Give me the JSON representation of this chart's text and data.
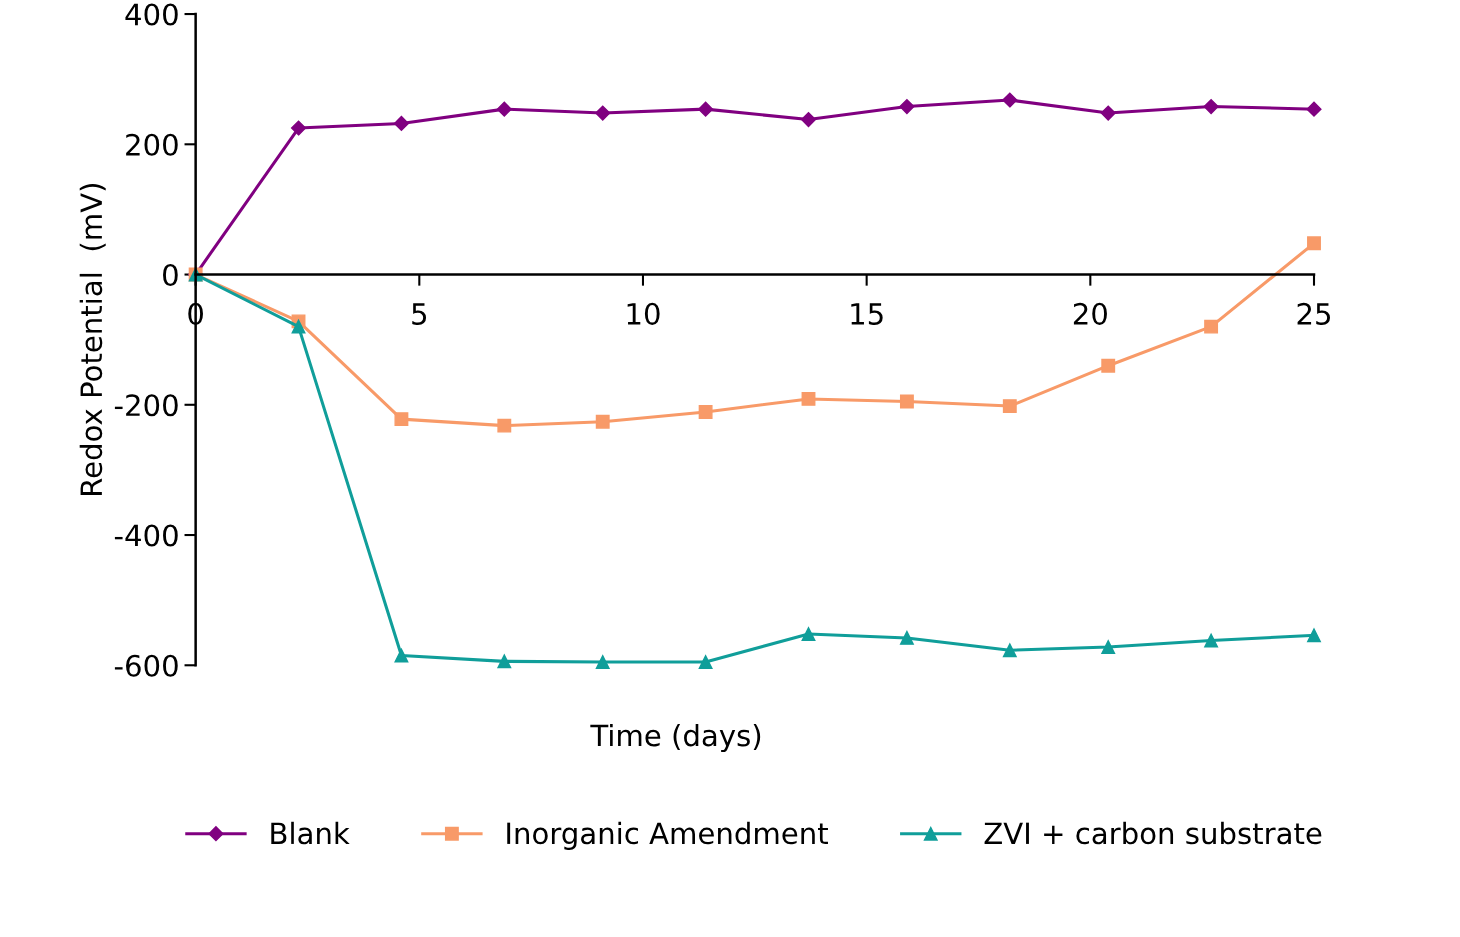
{
  "chart_data": {
    "type": "line",
    "xlabel": "Time (days)",
    "ylabel": "Redox Potential  (mV)",
    "x": [
      0,
      2.3,
      4.6,
      6.9,
      9.1,
      11.4,
      13.7,
      15.9,
      18.2,
      20.4,
      22.7,
      25
    ],
    "series": [
      {
        "name": "Blank",
        "color": "#800080",
        "marker": "diamond",
        "values": [
          0,
          225,
          232,
          254,
          248,
          254,
          238,
          258,
          268,
          248,
          258,
          254
        ]
      },
      {
        "name": "Inorganic Amendment",
        "color": "#f89a68",
        "marker": "square",
        "values": [
          0,
          -72,
          -222,
          -232,
          -226,
          -211,
          -191,
          -195,
          -202,
          -140,
          -80,
          48
        ]
      },
      {
        "name": "ZVI + carbon substrate",
        "color": "#109e9a",
        "marker": "triangle",
        "values": [
          0,
          -80,
          -585,
          -594,
          -595,
          -595,
          -552,
          -558,
          -577,
          -572,
          -562,
          -554
        ]
      }
    ],
    "xlim": [
      0,
      25
    ],
    "xticks": [
      0,
      5,
      10,
      15,
      20,
      25
    ],
    "ylim": [
      -600,
      400
    ],
    "yticks": [
      -600,
      -400,
      -200,
      0,
      200,
      400
    ],
    "grid": false,
    "legend": "bottom",
    "line_style": "solid"
  }
}
